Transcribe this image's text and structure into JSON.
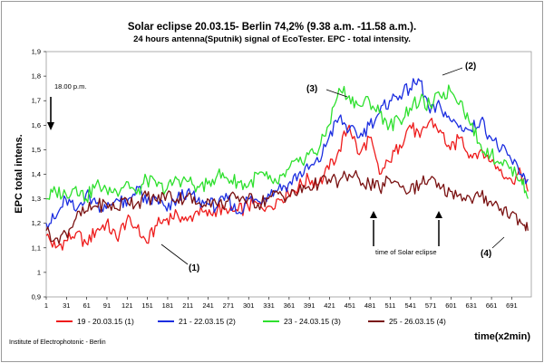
{
  "chart_data": {
    "type": "line",
    "title": "Solar eclipse 20.03.15- Berlin 74,2%  (9.38 a.m. -11.58 a.m.).",
    "subtitle": "24 hours antenna(Sputnik) signal of EcoTester. EPC - total intensity.",
    "xlabel": "time(x2min)",
    "ylabel": "EPC total intens.",
    "ylim": [
      0.9,
      1.9
    ],
    "xlim": [
      1,
      720
    ],
    "yticks": [
      "0,9",
      "1",
      "1,1",
      "1,2",
      "1,3",
      "1,4",
      "1,5",
      "1,6",
      "1,7",
      "1,8",
      "1,9"
    ],
    "xticks": [
      "1",
      "31",
      "61",
      "91",
      "121",
      "151",
      "181",
      "211",
      "241",
      "271",
      "301",
      "331",
      "361",
      "391",
      "421",
      "451",
      "481",
      "511",
      "541",
      "571",
      "601",
      "631",
      "661",
      "691"
    ],
    "grid": false,
    "legend_position": "bottom",
    "series": [
      {
        "name": "19 - 20.03.15 (1)",
        "color": "#ee1c1c",
        "x": [
          1,
          15,
          30,
          45,
          60,
          75,
          90,
          105,
          120,
          135,
          150,
          165,
          180,
          195,
          210,
          225,
          240,
          255,
          270,
          285,
          300,
          315,
          330,
          345,
          360,
          375,
          390,
          405,
          420,
          435,
          450,
          465,
          480,
          495,
          510,
          525,
          540,
          555,
          570,
          585,
          600,
          615,
          630,
          645,
          660,
          675,
          690,
          705,
          715
        ],
        "y": [
          1.15,
          1.1,
          1.13,
          1.16,
          1.12,
          1.17,
          1.2,
          1.14,
          1.21,
          1.18,
          1.12,
          1.19,
          1.22,
          1.24,
          1.21,
          1.25,
          1.23,
          1.26,
          1.24,
          1.25,
          1.27,
          1.28,
          1.27,
          1.3,
          1.32,
          1.35,
          1.38,
          1.36,
          1.42,
          1.5,
          1.6,
          1.48,
          1.55,
          1.4,
          1.45,
          1.52,
          1.6,
          1.55,
          1.62,
          1.58,
          1.5,
          1.55,
          1.48,
          1.5,
          1.45,
          1.42,
          1.38,
          1.4,
          1.33
        ]
      },
      {
        "name": "21 - 22.03.15 (2)",
        "color": "#1c2ee0",
        "x": [
          1,
          15,
          30,
          45,
          60,
          75,
          90,
          105,
          120,
          135,
          150,
          165,
          180,
          195,
          210,
          225,
          240,
          255,
          270,
          285,
          300,
          315,
          330,
          345,
          360,
          375,
          390,
          405,
          420,
          435,
          450,
          465,
          480,
          495,
          510,
          525,
          540,
          555,
          570,
          585,
          600,
          615,
          630,
          645,
          660,
          675,
          690,
          705,
          715
        ],
        "y": [
          1.2,
          1.22,
          1.3,
          1.25,
          1.32,
          1.28,
          1.26,
          1.3,
          1.27,
          1.35,
          1.28,
          1.3,
          1.25,
          1.3,
          1.33,
          1.29,
          1.28,
          1.27,
          1.3,
          1.24,
          1.3,
          1.29,
          1.32,
          1.34,
          1.36,
          1.4,
          1.42,
          1.45,
          1.55,
          1.63,
          1.58,
          1.55,
          1.6,
          1.65,
          1.7,
          1.72,
          1.75,
          1.78,
          1.65,
          1.68,
          1.62,
          1.6,
          1.58,
          1.62,
          1.55,
          1.5,
          1.46,
          1.4,
          1.38
        ]
      },
      {
        "name": "23 - 24.03.15 (3)",
        "color": "#2ee02e",
        "x": [
          1,
          15,
          30,
          45,
          60,
          75,
          90,
          105,
          120,
          135,
          150,
          165,
          180,
          195,
          210,
          225,
          240,
          255,
          270,
          285,
          300,
          315,
          330,
          345,
          360,
          375,
          390,
          405,
          420,
          435,
          450,
          465,
          480,
          495,
          510,
          525,
          540,
          555,
          570,
          585,
          600,
          615,
          630,
          645,
          660,
          675,
          690,
          705,
          715
        ],
        "y": [
          1.3,
          1.33,
          1.32,
          1.35,
          1.3,
          1.36,
          1.34,
          1.33,
          1.37,
          1.32,
          1.38,
          1.35,
          1.34,
          1.38,
          1.37,
          1.35,
          1.36,
          1.4,
          1.38,
          1.37,
          1.35,
          1.4,
          1.38,
          1.36,
          1.42,
          1.45,
          1.48,
          1.5,
          1.6,
          1.75,
          1.72,
          1.68,
          1.7,
          1.65,
          1.6,
          1.62,
          1.67,
          1.7,
          1.68,
          1.72,
          1.74,
          1.7,
          1.6,
          1.52,
          1.48,
          1.45,
          1.43,
          1.38,
          1.3
        ]
      },
      {
        "name": "25 - 26.03.15 (4)",
        "color": "#7a1212",
        "x": [
          1,
          15,
          30,
          45,
          60,
          75,
          90,
          105,
          120,
          135,
          150,
          165,
          180,
          195,
          210,
          225,
          240,
          255,
          270,
          285,
          300,
          315,
          330,
          345,
          360,
          375,
          390,
          405,
          420,
          435,
          450,
          465,
          480,
          495,
          510,
          525,
          540,
          555,
          570,
          585,
          600,
          615,
          630,
          645,
          660,
          675,
          690,
          705,
          715
        ],
        "y": [
          1.17,
          1.14,
          1.16,
          1.22,
          1.25,
          1.27,
          1.28,
          1.26,
          1.3,
          1.28,
          1.31,
          1.29,
          1.32,
          1.3,
          1.31,
          1.28,
          1.3,
          1.27,
          1.29,
          1.31,
          1.3,
          1.28,
          1.3,
          1.32,
          1.31,
          1.33,
          1.35,
          1.36,
          1.38,
          1.37,
          1.4,
          1.38,
          1.36,
          1.34,
          1.38,
          1.35,
          1.33,
          1.36,
          1.38,
          1.34,
          1.33,
          1.32,
          1.3,
          1.31,
          1.29,
          1.26,
          1.24,
          1.2,
          1.17
        ]
      }
    ],
    "annotations": {
      "time_label": "18.00 p.m.",
      "eclipse_label": "time of Solar eclipse",
      "n1": "(1)",
      "n2": "(2)",
      "n3": "(3)",
      "n4": "(4)"
    },
    "institute": "Institute of Electrophotonic - Berlin"
  }
}
